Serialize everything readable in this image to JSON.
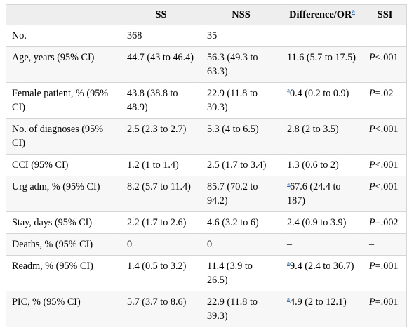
{
  "table": {
    "headers": [
      "",
      "SS",
      "NSS",
      "Difference/OR",
      "SSI"
    ],
    "header_footnote": "a",
    "rows": [
      {
        "label": "No.",
        "ss": "368",
        "nss": "35",
        "diff_note": "",
        "diff": "",
        "p_italic": "",
        "p_rest": ""
      },
      {
        "label": "Age, years (95% CI)",
        "ss": "44.7 (43 to 46.4)",
        "nss": "56.3 (49.3 to 63.3)",
        "diff_note": "",
        "diff": "11.6 (5.7 to 17.5)",
        "p_italic": "P",
        "p_rest": "<.001"
      },
      {
        "label": "Female patient, % (95% CI)",
        "ss": "43.8 (38.8 to 48.9)",
        "nss": "22.9 (11.8 to 39.3)",
        "diff_note": "a",
        "diff": "0.4 (0.2 to 0.9)",
        "p_italic": "P",
        "p_rest": "=.02"
      },
      {
        "label": "No. of diagnoses (95% CI)",
        "ss": "2.5 (2.3 to 2.7)",
        "nss": "5.3 (4 to 6.5)",
        "diff_note": "",
        "diff": "2.8 (2 to 3.5)",
        "p_italic": "P",
        "p_rest": "<.001"
      },
      {
        "label": "CCI (95% CI)",
        "ss": "1.2 (1 to 1.4)",
        "nss": "2.5 (1.7 to 3.4)",
        "diff_note": "",
        "diff": "1.3 (0.6 to 2)",
        "p_italic": "P",
        "p_rest": "<.001"
      },
      {
        "label": "Urg adm, % (95% CI)",
        "ss": "8.2 (5.7 to 11.4)",
        "nss": "85.7 (70.2 to 94.2)",
        "diff_note": "a",
        "diff": "67.6 (24.4 to 187)",
        "p_italic": "P",
        "p_rest": "<.001"
      },
      {
        "label": "Stay, days (95% CI)",
        "ss": "2.2 (1.7 to 2.6)",
        "nss": "4.6 (3.2 to 6)",
        "diff_note": "",
        "diff": "2.4 (0.9 to 3.9)",
        "p_italic": "P",
        "p_rest": "=.002"
      },
      {
        "label": "Deaths, % (95% CI)",
        "ss": "0",
        "nss": "0",
        "diff_note": "",
        "diff": "–",
        "p_italic": "",
        "p_rest": "–"
      },
      {
        "label": "Readm, % (95% CI)",
        "ss": "1.4 (0.5 to 3.2)",
        "nss": "11.4 (3.9 to 26.5)",
        "diff_note": "a",
        "diff": "9.4 (2.4 to 36.7)",
        "p_italic": "P",
        "p_rest": "=.001"
      },
      {
        "label": "PIC, % (95% CI)",
        "ss": "5.7 (3.7 to 8.6)",
        "nss": "22.9 (11.8 to 39.3)",
        "diff_note": "a",
        "diff": "4.9 (2 to 12.1)",
        "p_italic": "P",
        "p_rest": "=.001"
      }
    ]
  }
}
